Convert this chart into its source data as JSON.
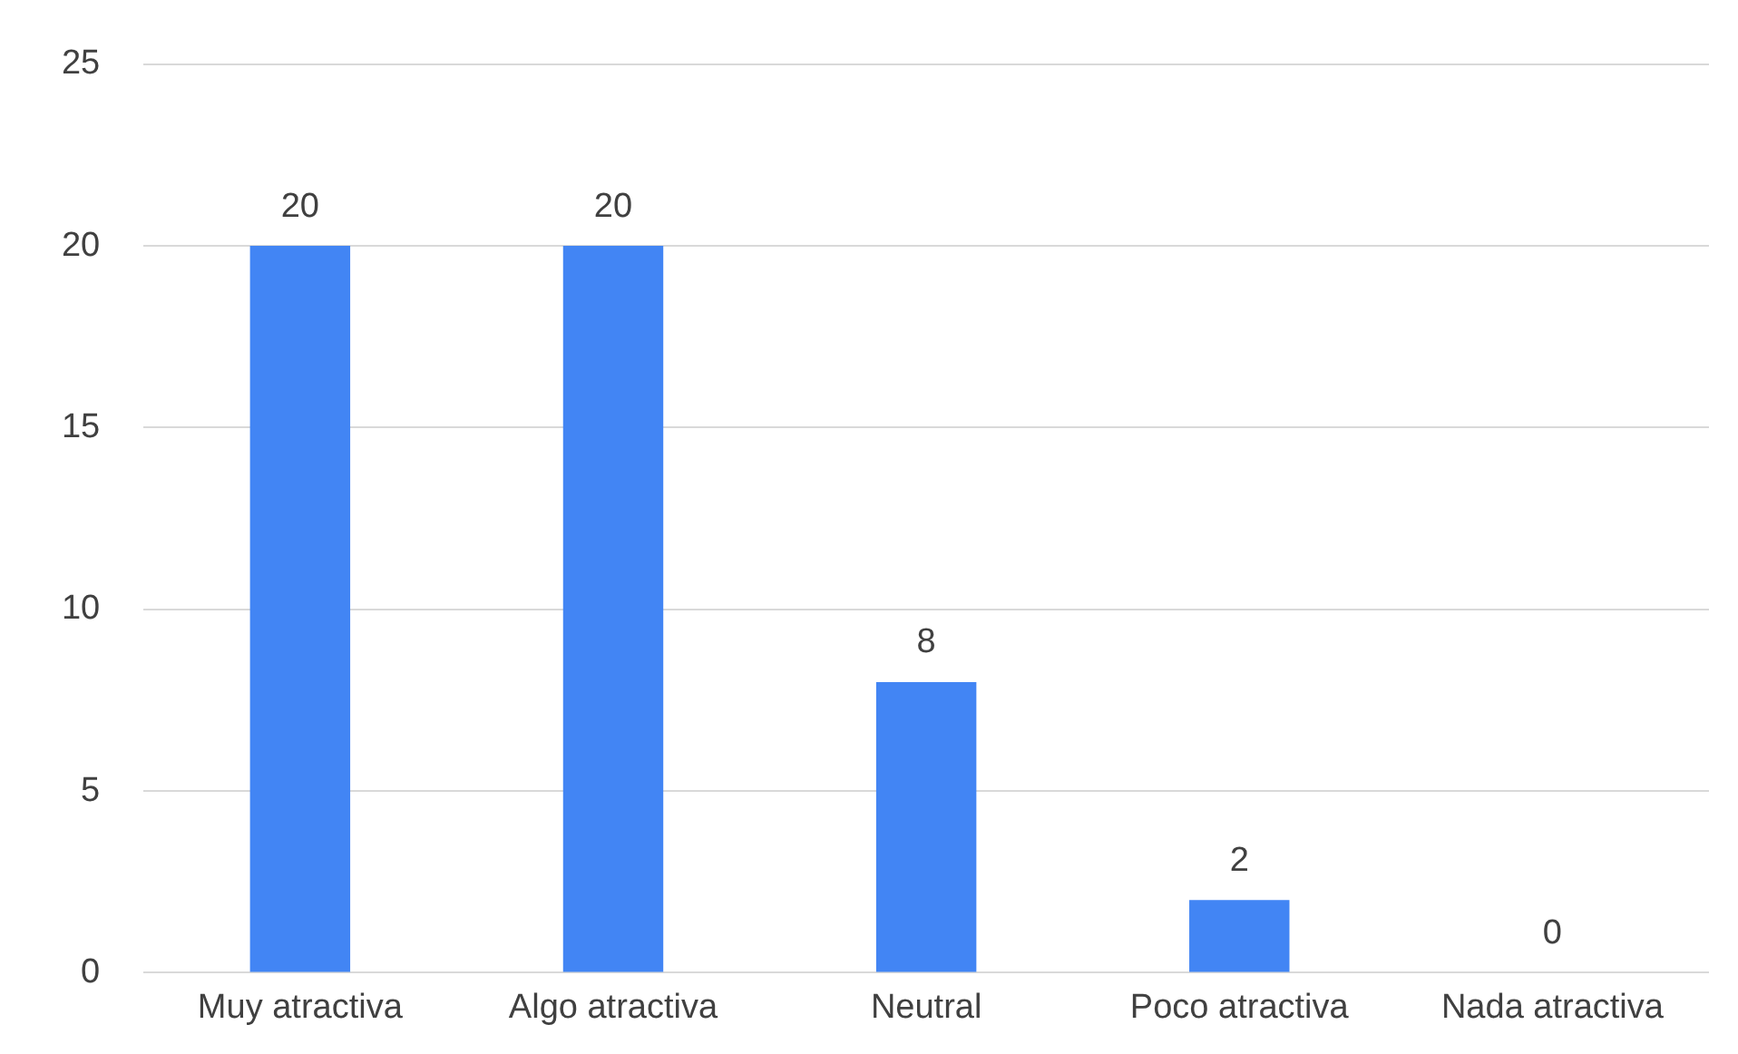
{
  "chart_data": {
    "type": "bar",
    "categories": [
      "Muy atractiva",
      "Algo atractiva",
      "Neutral",
      "Poco atractiva",
      "Nada atractiva"
    ],
    "values": [
      20,
      20,
      8,
      2,
      0
    ],
    "color": "#4285f4",
    "ylim": [
      0,
      25
    ],
    "yticks": [
      0,
      5,
      10,
      15,
      20,
      25
    ],
    "grid": "y",
    "data_labels": true,
    "legend": false
  }
}
